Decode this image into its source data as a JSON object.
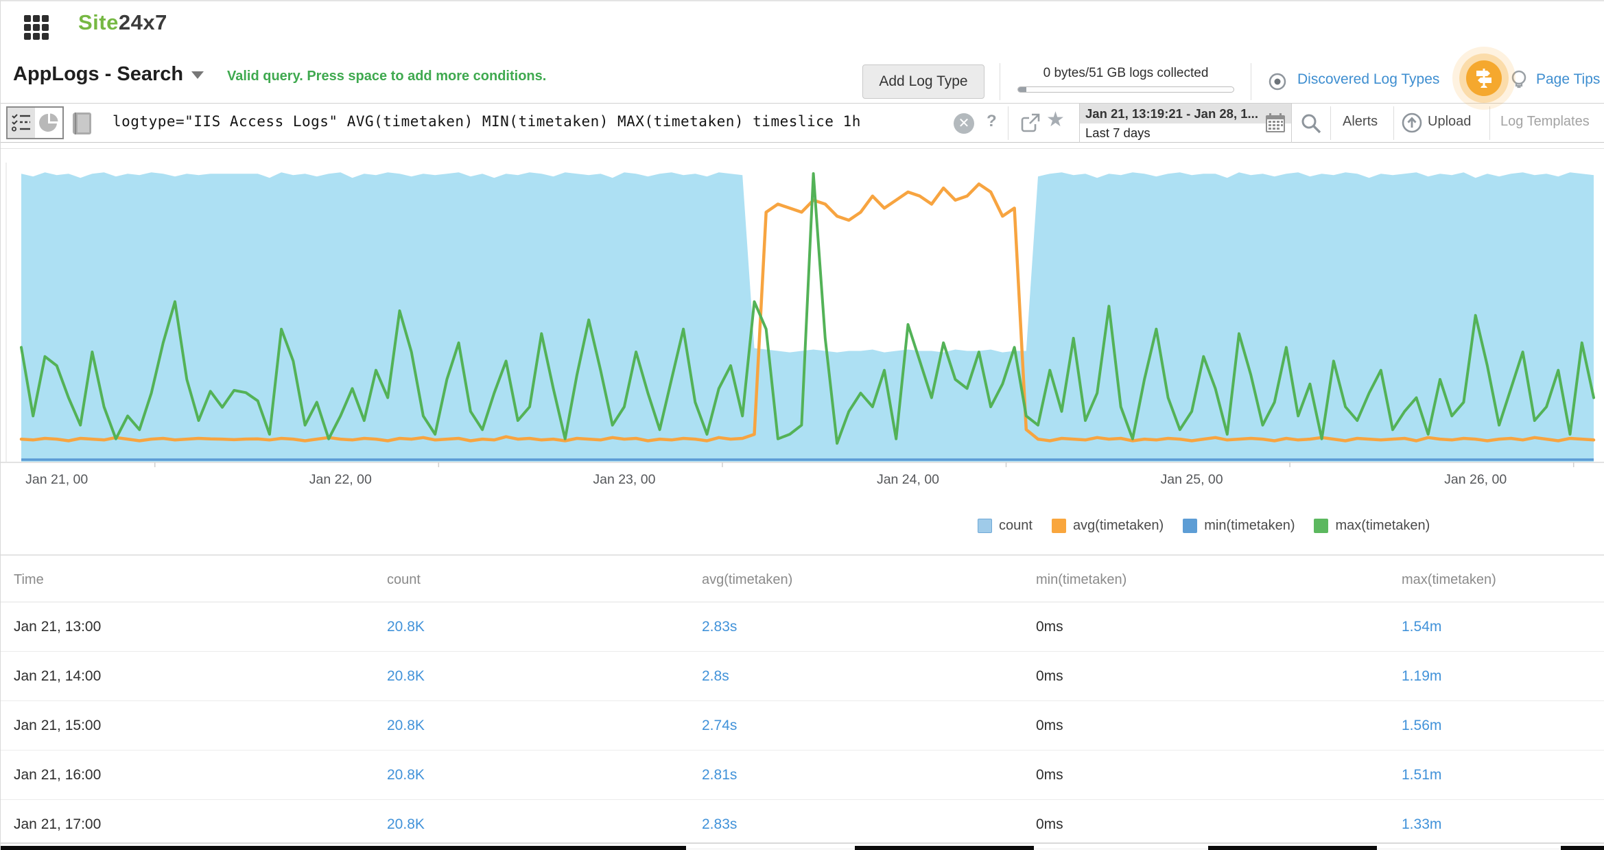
{
  "header": {
    "logo_green": "Site",
    "logo_dark": "24x7"
  },
  "toolbar": {
    "title": "AppLogs - Search",
    "validation_message": "Valid query. Press space to add more conditions.",
    "add_log_type": "Add Log Type",
    "usage_text": "0 bytes/51 GB logs collected",
    "discovered_log_types": "Discovered Log Types",
    "page_tips": "Page Tips"
  },
  "query_bar": {
    "query": "logtype=\"IIS Access Logs\" AVG(timetaken) MIN(timetaken) MAX(timetaken) timeslice 1h",
    "help_label": "?",
    "clear_label": "✕",
    "date_range": "Jan 21, 13:19:21 - Jan 28, 1...",
    "date_preset": "Last 7 days",
    "alerts_label": "Alerts",
    "upload_label": "Upload",
    "log_templates_label": "Log Templates"
  },
  "chart_data": {
    "type": "area",
    "interval": "1h",
    "x_axis": {
      "labels": [
        "Jan 21, 00",
        "Jan 22, 00",
        "Jan 23, 00",
        "Jan 24, 00",
        "Jan 25, 00",
        "Jan 26, 00"
      ],
      "label_hours": [
        3,
        27,
        51,
        75,
        99,
        123
      ],
      "tick_hours": [
        11.3,
        35.3,
        59.3,
        83.3,
        107.3,
        131.3
      ],
      "hours_span": 133
    },
    "legend": [
      {
        "label": "count",
        "color": "#9FCBE9",
        "border": "#6FA8D6"
      },
      {
        "label": "avg(timetaken)",
        "color": "#F9A63D",
        "border": "#F9A63D"
      },
      {
        "label": "min(timetaken)",
        "color": "#5D9DD5",
        "border": "#5D9DD5"
      },
      {
        "label": "max(timetaken)",
        "color": "#5CB85F",
        "border": "#5CB85F"
      }
    ],
    "series": [
      {
        "name": "count",
        "type": "area",
        "unit": "K",
        "color": "#ADE0F3",
        "ymax": 21.8,
        "values": [
          20.8,
          20.6,
          20.9,
          20.7,
          20.8,
          20.5,
          20.8,
          20.9,
          20.6,
          20.8,
          20.7,
          20.9,
          20.8,
          20.6,
          20.8,
          20.7,
          20.8,
          20.8,
          20.8,
          20.8,
          20.8,
          20.5,
          20.9,
          20.7,
          20.8,
          20.6,
          20.8,
          20.9,
          20.5,
          20.8,
          20.7,
          20.9,
          20.8,
          20.6,
          20.8,
          20.7,
          20.8,
          20.9,
          20.6,
          20.8,
          20.5,
          20.8,
          20.7,
          20.9,
          20.8,
          20.6,
          20.9,
          20.8,
          20.7,
          20.8,
          20.5,
          20.9,
          20.8,
          20.6,
          20.8,
          20.9,
          20.7,
          20.8,
          20.6,
          20.9,
          20.8,
          20.7,
          8.2,
          8.1,
          8.0,
          7.9,
          8.0,
          8.1,
          8.0,
          7.9,
          8.0,
          8.0,
          8.1,
          7.9,
          8.0,
          8.1,
          8.0,
          8.0,
          7.9,
          8.1,
          8.0,
          8.0,
          8.1,
          7.9,
          8.0,
          8.0,
          20.6,
          20.8,
          20.9,
          20.7,
          20.8,
          20.5,
          20.8,
          20.7,
          20.9,
          20.8,
          20.6,
          20.8,
          20.9,
          20.7,
          20.8,
          20.8,
          20.5,
          20.9,
          20.7,
          20.8,
          20.6,
          20.8,
          20.9,
          20.6,
          20.8,
          20.7,
          20.9,
          20.8,
          20.5,
          20.8,
          20.7,
          20.8,
          20.9,
          20.6,
          20.8,
          20.7,
          20.9,
          20.5,
          20.8,
          20.6,
          20.8,
          20.9,
          20.7,
          20.8,
          20.6,
          20.9,
          20.8,
          20.7
        ]
      },
      {
        "name": "avg(timetaken)",
        "type": "line",
        "unit": "s",
        "color": "#F7A440",
        "ymax": 37.5,
        "values": [
          2.8,
          2.7,
          2.9,
          2.8,
          2.6,
          2.9,
          2.8,
          2.7,
          3.0,
          2.8,
          2.6,
          2.8,
          2.9,
          2.7,
          2.8,
          2.9,
          2.83,
          2.8,
          2.74,
          2.81,
          2.83,
          2.7,
          2.9,
          2.8,
          2.6,
          2.8,
          3.0,
          2.8,
          2.7,
          2.9,
          2.8,
          2.6,
          2.9,
          2.8,
          3.0,
          2.7,
          2.8,
          2.9,
          2.6,
          2.8,
          2.7,
          3.1,
          2.8,
          2.9,
          2.7,
          2.8,
          2.6,
          2.9,
          2.8,
          2.7,
          3.0,
          2.8,
          2.9,
          2.6,
          2.8,
          2.7,
          2.9,
          2.8,
          2.6,
          3.0,
          2.8,
          2.9,
          3.4,
          31,
          32,
          31.5,
          31,
          32.5,
          32,
          30.5,
          30,
          31,
          33,
          31.5,
          32.5,
          33.5,
          33,
          32,
          34,
          32.5,
          33,
          34.5,
          33.5,
          30.5,
          31.5,
          4.0,
          2.8,
          2.6,
          2.9,
          2.8,
          2.7,
          3.0,
          2.8,
          2.9,
          2.6,
          2.8,
          2.7,
          2.9,
          2.8,
          2.6,
          2.8,
          3.0,
          2.7,
          2.8,
          2.9,
          2.8,
          2.6,
          2.9,
          2.7,
          2.8,
          3.0,
          2.8,
          2.6,
          2.9,
          2.8,
          2.7,
          2.8,
          2.9,
          2.6,
          3.0,
          2.8,
          2.7,
          2.9,
          2.8,
          2.6,
          2.8,
          2.9,
          2.7,
          3.0,
          2.8,
          2.6,
          2.9,
          2.8,
          2.7
        ]
      },
      {
        "name": "min(timetaken)",
        "type": "line",
        "unit": "ms",
        "color": "#5B9BD5",
        "ymax": 1,
        "values_constant": 0
      },
      {
        "name": "max(timetaken)",
        "type": "line",
        "unit": "m",
        "color": "#53B257",
        "ymax": 6.6,
        "values": [
          2.5,
          1.0,
          2.3,
          2.1,
          1.4,
          0.8,
          2.4,
          1.2,
          0.5,
          1.0,
          0.7,
          1.5,
          2.6,
          3.5,
          1.8,
          0.9,
          1.54,
          1.19,
          1.56,
          1.51,
          1.33,
          0.6,
          2.9,
          2.2,
          0.8,
          1.3,
          0.5,
          1.0,
          1.6,
          0.9,
          2.0,
          1.4,
          3.3,
          2.4,
          1.0,
          0.6,
          1.8,
          2.6,
          1.1,
          0.7,
          1.5,
          2.2,
          0.9,
          1.2,
          2.8,
          1.6,
          0.5,
          1.9,
          3.1,
          2.0,
          0.8,
          1.2,
          2.4,
          1.5,
          0.7,
          1.8,
          2.9,
          1.3,
          0.6,
          1.6,
          2.1,
          1.0,
          3.5,
          2.9,
          0.5,
          0.6,
          0.8,
          6.3,
          2.7,
          0.4,
          1.1,
          1.5,
          1.2,
          2.0,
          0.5,
          3.0,
          2.2,
          1.4,
          2.6,
          1.8,
          1.6,
          2.4,
          1.2,
          1.7,
          2.5,
          1.0,
          0.8,
          2.0,
          1.1,
          2.7,
          0.9,
          1.5,
          3.4,
          1.2,
          0.5,
          1.8,
          2.9,
          1.4,
          0.7,
          1.1,
          2.3,
          1.6,
          0.6,
          2.8,
          1.9,
          0.8,
          1.3,
          2.5,
          1.0,
          1.7,
          0.5,
          2.2,
          1.2,
          0.9,
          1.5,
          2.0,
          0.7,
          1.1,
          1.4,
          0.6,
          1.8,
          1.0,
          1.3,
          3.2,
          2.1,
          0.8,
          1.6,
          2.4,
          0.9,
          1.2,
          2.0,
          0.6,
          2.6,
          1.4
        ]
      }
    ]
  },
  "table": {
    "columns": [
      "Time",
      "count",
      "avg(timetaken)",
      "min(timetaken)",
      "max(timetaken)"
    ],
    "rows": [
      [
        "Jan 21, 13:00",
        "20.8K",
        "2.83s",
        "0ms",
        "1.54m"
      ],
      [
        "Jan 21, 14:00",
        "20.8K",
        "2.8s",
        "0ms",
        "1.19m"
      ],
      [
        "Jan 21, 15:00",
        "20.8K",
        "2.74s",
        "0ms",
        "1.56m"
      ],
      [
        "Jan 21, 16:00",
        "20.8K",
        "2.81s",
        "0ms",
        "1.51m"
      ],
      [
        "Jan 21, 17:00",
        "20.8K",
        "2.83s",
        "0ms",
        "1.33m"
      ]
    ]
  },
  "artifacts": {
    "bottom_bars": [
      [
        0,
        999
      ],
      [
        1245,
        1506
      ],
      [
        1760,
        2006
      ],
      [
        2274,
        2338
      ]
    ]
  },
  "colors": {
    "accent_blue": "#3E8ED0",
    "link_blue": "#4192D9",
    "valid_green": "#3FA94F",
    "logo_green": "#76B843",
    "badge_orange": "#F5A82E",
    "area_blue": "#ADE0F3",
    "line_orange": "#F7A440",
    "line_green": "#53B257",
    "line_min_blue": "#5B9BD5"
  }
}
